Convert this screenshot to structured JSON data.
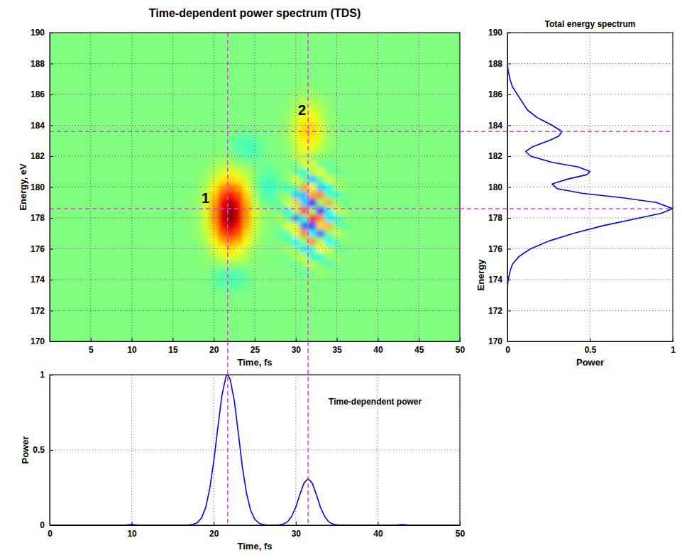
{
  "chart_data": [
    {
      "type": "heatmap",
      "title": "Time-dependent power spectrum (TDS)",
      "x_label": "Time, fs",
      "y_label": "Energy, eV",
      "x": [
        17,
        18,
        19,
        20,
        21,
        22,
        23,
        24,
        25,
        26,
        27,
        28,
        29,
        30,
        31,
        32,
        33,
        34,
        35,
        36,
        37
      ],
      "y": [
        173,
        173.5,
        174,
        174.5,
        175,
        175.5,
        176,
        176.5,
        177,
        177.5,
        178,
        178.5,
        179,
        179.5,
        180,
        180.5,
        181,
        181.5,
        182,
        182.5,
        183,
        183.5,
        184,
        184.5,
        185,
        185.5,
        186,
        186.5,
        187
      ],
      "cells": [
        [
          0,
          0,
          0,
          0,
          0,
          0,
          0,
          0,
          0,
          0,
          0,
          0,
          0,
          0,
          0,
          0,
          0,
          0,
          0,
          0,
          0
        ],
        [
          0,
          0,
          0,
          -0.03,
          -0.04,
          -0.05,
          -0.04,
          -0.03,
          0,
          0,
          0,
          0,
          0,
          0,
          0,
          0,
          0,
          0,
          0,
          0,
          0
        ],
        [
          0,
          0,
          0,
          -0.05,
          -0.09,
          -0.1,
          -0.09,
          -0.05,
          0,
          0,
          0,
          0,
          0,
          0,
          0,
          0,
          0,
          0,
          0,
          0,
          0
        ],
        [
          0,
          0,
          0.01,
          -0.04,
          -0.08,
          -0.08,
          -0.08,
          -0.04,
          0.01,
          0,
          0,
          0,
          0.01,
          -0.01,
          -0.06,
          -0.01,
          0.06,
          0.02,
          -0.01,
          0,
          0
        ],
        [
          0,
          0,
          0.02,
          0.02,
          0.04,
          0.05,
          0.04,
          0.02,
          0.02,
          0,
          0,
          0,
          -0.02,
          -0.05,
          0.05,
          0.12,
          -0.01,
          -0.07,
          -0.01,
          0,
          0
        ],
        [
          0,
          0.01,
          0.03,
          0.08,
          0.15,
          0.18,
          0.15,
          0.08,
          0.03,
          0.01,
          0,
          0,
          -0.01,
          0.1,
          0.12,
          -0.14,
          -0.17,
          0.03,
          0.05,
          0,
          0
        ],
        [
          0,
          0.01,
          0.05,
          0.14,
          0.25,
          0.31,
          0.25,
          0.14,
          0.05,
          0.01,
          0,
          0,
          0.08,
          0.02,
          -0.28,
          -0.16,
          0.23,
          0.14,
          -0.04,
          -0.03,
          0
        ],
        [
          0,
          0.02,
          0.08,
          0.23,
          0.4,
          0.49,
          0.4,
          0.23,
          0.08,
          0.02,
          0,
          0,
          -0.06,
          -0.25,
          0.04,
          0.48,
          0.12,
          -0.23,
          -0.08,
          0.03,
          0
        ],
        [
          0.01,
          0.03,
          0.12,
          0.32,
          0.57,
          0.69,
          0.57,
          0.32,
          0.12,
          0.03,
          0.01,
          -0.05,
          -0.1,
          0.22,
          0.48,
          -0.19,
          -0.54,
          -0.03,
          0.15,
          0.03,
          0
        ],
        [
          0.01,
          0.04,
          0.15,
          0.4,
          0.71,
          0.87,
          0.71,
          0.4,
          0.15,
          0.04,
          0.01,
          -0.01,
          0.18,
          0.19,
          -0.51,
          -0.6,
          0.31,
          0.4,
          -0.02,
          -0.06,
          0
        ],
        [
          0.01,
          0.04,
          0.17,
          0.45,
          0.8,
          0.98,
          0.8,
          0.45,
          0.17,
          0.04,
          0.01,
          0.07,
          -0.02,
          -0.45,
          -0.13,
          0.73,
          0.45,
          -0.28,
          -0.18,
          0.02,
          0
        ],
        [
          0.01,
          0.04,
          0.17,
          0.46,
          0.81,
          0.99,
          0.81,
          0.46,
          0.17,
          0.04,
          0.01,
          -0.04,
          -0.19,
          0.13,
          0.72,
          0.08,
          -0.69,
          -0.22,
          0.16,
          0.06,
          0
        ],
        [
          0.01,
          0.04,
          0.15,
          0.41,
          0.74,
          0.9,
          0.74,
          0.41,
          0.13,
          -0.01,
          -0.05,
          -0.05,
          0.15,
          0.33,
          -0.32,
          -0.74,
          0.07,
          0.42,
          0.06,
          -0.06,
          0
        ],
        [
          0.01,
          0.03,
          0.12,
          0.34,
          0.6,
          0.73,
          0.6,
          0.34,
          0.08,
          -0.08,
          -0.1,
          0.01,
          0.05,
          -0.32,
          -0.36,
          0.42,
          0.5,
          -0.11,
          -0.16,
          -0.01,
          0
        ],
        [
          0,
          0.02,
          0.09,
          0.24,
          0.44,
          0.53,
          0.44,
          0.24,
          0.03,
          -0.11,
          -0.13,
          -0.07,
          -0.13,
          -0.03,
          0.43,
          0.24,
          -0.35,
          -0.22,
          0.06,
          0.04,
          0
        ],
        [
          0,
          0.02,
          0.06,
          0.16,
          0.28,
          0.34,
          0.28,
          0.16,
          0.01,
          -0.09,
          -0.11,
          -0.05,
          0.04,
          0.19,
          -0.03,
          -0.36,
          -0.06,
          0.17,
          0.06,
          0,
          0
        ],
        [
          0,
          0.01,
          0.03,
          0.09,
          0.16,
          0.2,
          0.16,
          0.09,
          0.01,
          -0.05,
          -0.05,
          -0.02,
          0.04,
          -0.07,
          -0.15,
          0.1,
          0.21,
          0.01,
          -0.06,
          0,
          0
        ],
        [
          0,
          0,
          0.02,
          0.05,
          0.08,
          0.09,
          0.05,
          0.01,
          -0.01,
          -0.03,
          -0.02,
          0,
          -0.02,
          -0.01,
          0.16,
          0.17,
          -0.03,
          -0.06,
          0,
          0,
          0
        ],
        [
          0,
          0,
          0.01,
          0.02,
          0.04,
          0.02,
          -0.04,
          -0.07,
          -0.07,
          -0.03,
          0,
          0,
          0.02,
          0.11,
          0.14,
          0.05,
          0.03,
          0.02,
          0,
          0,
          0
        ],
        [
          0,
          0,
          0,
          0,
          0.02,
          -0.02,
          -0.08,
          -0.12,
          -0.1,
          -0.04,
          0,
          0.01,
          0.03,
          0.11,
          0.2,
          0.2,
          0.11,
          0.03,
          0.01,
          0,
          0
        ],
        [
          0,
          0,
          0,
          0,
          0,
          -0.03,
          -0.08,
          -0.1,
          -0.08,
          -0.03,
          0,
          0.01,
          0.05,
          0.15,
          0.27,
          0.27,
          0.15,
          0.05,
          0.01,
          0,
          0
        ],
        [
          0,
          0,
          0,
          0,
          0,
          0,
          -0.03,
          -0.04,
          -0.03,
          0,
          0,
          0.01,
          0.06,
          0.18,
          0.32,
          0.32,
          0.18,
          0.06,
          0.01,
          0,
          0
        ],
        [
          0,
          0,
          0,
          0,
          0,
          0,
          0,
          0,
          0,
          0,
          0,
          0.01,
          0.05,
          0.17,
          0.32,
          0.32,
          0.17,
          0.05,
          0.01,
          0,
          0
        ],
        [
          0,
          0,
          0,
          0,
          0,
          0,
          0,
          0,
          0,
          0,
          0,
          0.01,
          0.04,
          0.14,
          0.26,
          0.26,
          0.14,
          0.04,
          0.01,
          0,
          0
        ],
        [
          0,
          0,
          0,
          0,
          0,
          0,
          0,
          0,
          0,
          0,
          0,
          0,
          0.03,
          0.1,
          0.18,
          0.18,
          0.1,
          0.03,
          0,
          0,
          0
        ],
        [
          0,
          0,
          0,
          0,
          0,
          0,
          0,
          0,
          0,
          0,
          0,
          0,
          0.02,
          0.06,
          0.11,
          0.11,
          0.06,
          0.02,
          0,
          0,
          0
        ],
        [
          0,
          0,
          0,
          0,
          0,
          0,
          0,
          0,
          0,
          0,
          0,
          0,
          0.01,
          0.03,
          0.05,
          0.05,
          0.03,
          0.01,
          0,
          0,
          0
        ],
        [
          0,
          0,
          0,
          0,
          0,
          0,
          0,
          0,
          0,
          0,
          0,
          0,
          0,
          0.01,
          0.02,
          0.02,
          0.01,
          0,
          0,
          0,
          0
        ],
        [
          0,
          0,
          0,
          0,
          0,
          0,
          0,
          0,
          0,
          0,
          0,
          0,
          0,
          0,
          0.01,
          0.01,
          0,
          0,
          0,
          0,
          0
        ]
      ],
      "xlim": [
        0,
        50
      ],
      "xticks": [
        5,
        10,
        15,
        20,
        25,
        30,
        35,
        40,
        45,
        50
      ],
      "ylim": [
        170,
        190
      ],
      "yticks": [
        170,
        172,
        174,
        176,
        178,
        180,
        182,
        184,
        186,
        188,
        190
      ],
      "grid": true,
      "vlines": [
        21.7,
        31.5
      ],
      "hlines": [
        178.6,
        183.6
      ],
      "annotations": [
        {
          "text": "1",
          "x": 19,
          "y": 179.3
        },
        {
          "text": "2",
          "x": 30.75,
          "y": 185
        }
      ]
    },
    {
      "type": "line",
      "title": "Time-dependent power",
      "x_label": "Time, fs",
      "y_label": "Power",
      "x": [
        0,
        5,
        9,
        10,
        11,
        15,
        16,
        17,
        17.5,
        18,
        18.5,
        19,
        19.5,
        20,
        20.5,
        21,
        21.5,
        21.7,
        22,
        22.5,
        23,
        23.5,
        24,
        24.5,
        25,
        25.5,
        26,
        26.5,
        27,
        28,
        28.5,
        29,
        29.5,
        30,
        30.5,
        31,
        31.5,
        32,
        32.5,
        33,
        33.5,
        34,
        34.5,
        35,
        36,
        40,
        42,
        43,
        44,
        50
      ],
      "series": [
        {
          "color": "#0000ff",
          "values": [
            0,
            0,
            0,
            0.005,
            0,
            0,
            0,
            0.002,
            0.006,
            0.017,
            0.048,
            0.115,
            0.24,
            0.425,
            0.65,
            0.865,
            0.99,
            1,
            0.97,
            0.83,
            0.61,
            0.38,
            0.21,
            0.098,
            0.04,
            0.014,
            0.004,
            0.001,
            0,
            0.002,
            0.008,
            0.023,
            0.06,
            0.12,
            0.205,
            0.28,
            0.31,
            0.28,
            0.205,
            0.12,
            0.06,
            0.023,
            0.008,
            0.002,
            0,
            0,
            0,
            0.004,
            0,
            0
          ]
        }
      ],
      "xlim": [
        0,
        50
      ],
      "xticks": [
        0,
        10,
        20,
        30,
        40,
        50
      ],
      "ylim": [
        0,
        1
      ],
      "yticks": [
        0,
        0.5,
        1
      ],
      "grid": true,
      "vlines": [
        21.7,
        31.5
      ]
    },
    {
      "type": "line",
      "orientation": "horizontal",
      "title": "Total energy spectrum",
      "x_label": "Power",
      "y_label": "Energy",
      "y": [
        170,
        172,
        173,
        173.5,
        174,
        174.5,
        175,
        175.5,
        176,
        176.5,
        177,
        177.5,
        178,
        178.3,
        178.6,
        179,
        179.3,
        179.6,
        179.9,
        180.2,
        180.5,
        180.8,
        181,
        181.3,
        181.6,
        182,
        182.3,
        182.6,
        183,
        183.3,
        183.6,
        184,
        184.5,
        185,
        185.5,
        186,
        186.5,
        187,
        187.5,
        188,
        190
      ],
      "series": [
        {
          "color": "#0000ff",
          "values": [
            0,
            0,
            0,
            0,
            0.005,
            0.015,
            0.03,
            0.07,
            0.14,
            0.25,
            0.4,
            0.58,
            0.8,
            0.93,
            1,
            0.9,
            0.7,
            0.45,
            0.3,
            0.27,
            0.36,
            0.48,
            0.5,
            0.43,
            0.27,
            0.14,
            0.11,
            0.15,
            0.25,
            0.31,
            0.33,
            0.27,
            0.18,
            0.12,
            0.09,
            0.06,
            0.03,
            0.015,
            0.005,
            0,
            0
          ]
        }
      ],
      "xlim": [
        0,
        1
      ],
      "xticks": [
        0,
        0.5,
        1
      ],
      "ylim": [
        170,
        190
      ],
      "yticks": [
        170,
        172,
        174,
        176,
        178,
        180,
        182,
        184,
        186,
        188,
        190
      ],
      "grid": true,
      "hlines": [
        178.6,
        183.6
      ]
    }
  ]
}
